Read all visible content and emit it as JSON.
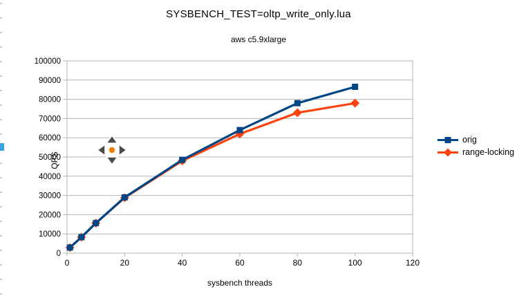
{
  "window": {
    "background_color": "#ffffff",
    "left_edge_ruler_color": "#c9c9c9",
    "left_edge_scroll_marker_color": "#38a3e8"
  },
  "autoscroll_widget": {
    "description": "middle-click autoscroll indicator",
    "dot_color": "#ef7d00",
    "arrow_color": "#4a4a4a"
  },
  "chart_data": {
    "type": "line",
    "title": "SYSBENCH_TEST=oltp_write_only.lua",
    "subtitle": "aws c5.9xlarge",
    "xlabel": "sysbench threads",
    "ylabel": "QPS",
    "x": [
      1,
      5,
      10,
      20,
      40,
      60,
      80,
      100
    ],
    "series": [
      {
        "name": "orig",
        "color": "#004586",
        "marker": "square",
        "values": [
          2900,
          8300,
          15600,
          29000,
          48500,
          64000,
          78000,
          86500
        ]
      },
      {
        "name": "range-locking",
        "color": "#ff420e",
        "marker": "diamond",
        "values": [
          2900,
          8300,
          15600,
          28800,
          48000,
          62000,
          73000,
          78000
        ]
      }
    ],
    "xlim": [
      0,
      120
    ],
    "ylim": [
      0,
      100000
    ],
    "xticks": [
      0,
      20,
      40,
      60,
      80,
      100,
      120
    ],
    "yticks": [
      0,
      10000,
      20000,
      30000,
      40000,
      50000,
      60000,
      70000,
      80000,
      90000,
      100000
    ],
    "grid": "horizontal",
    "gridline_color": "#b3b3b3",
    "tick_label_color": "#000000",
    "legend_position": "right"
  }
}
